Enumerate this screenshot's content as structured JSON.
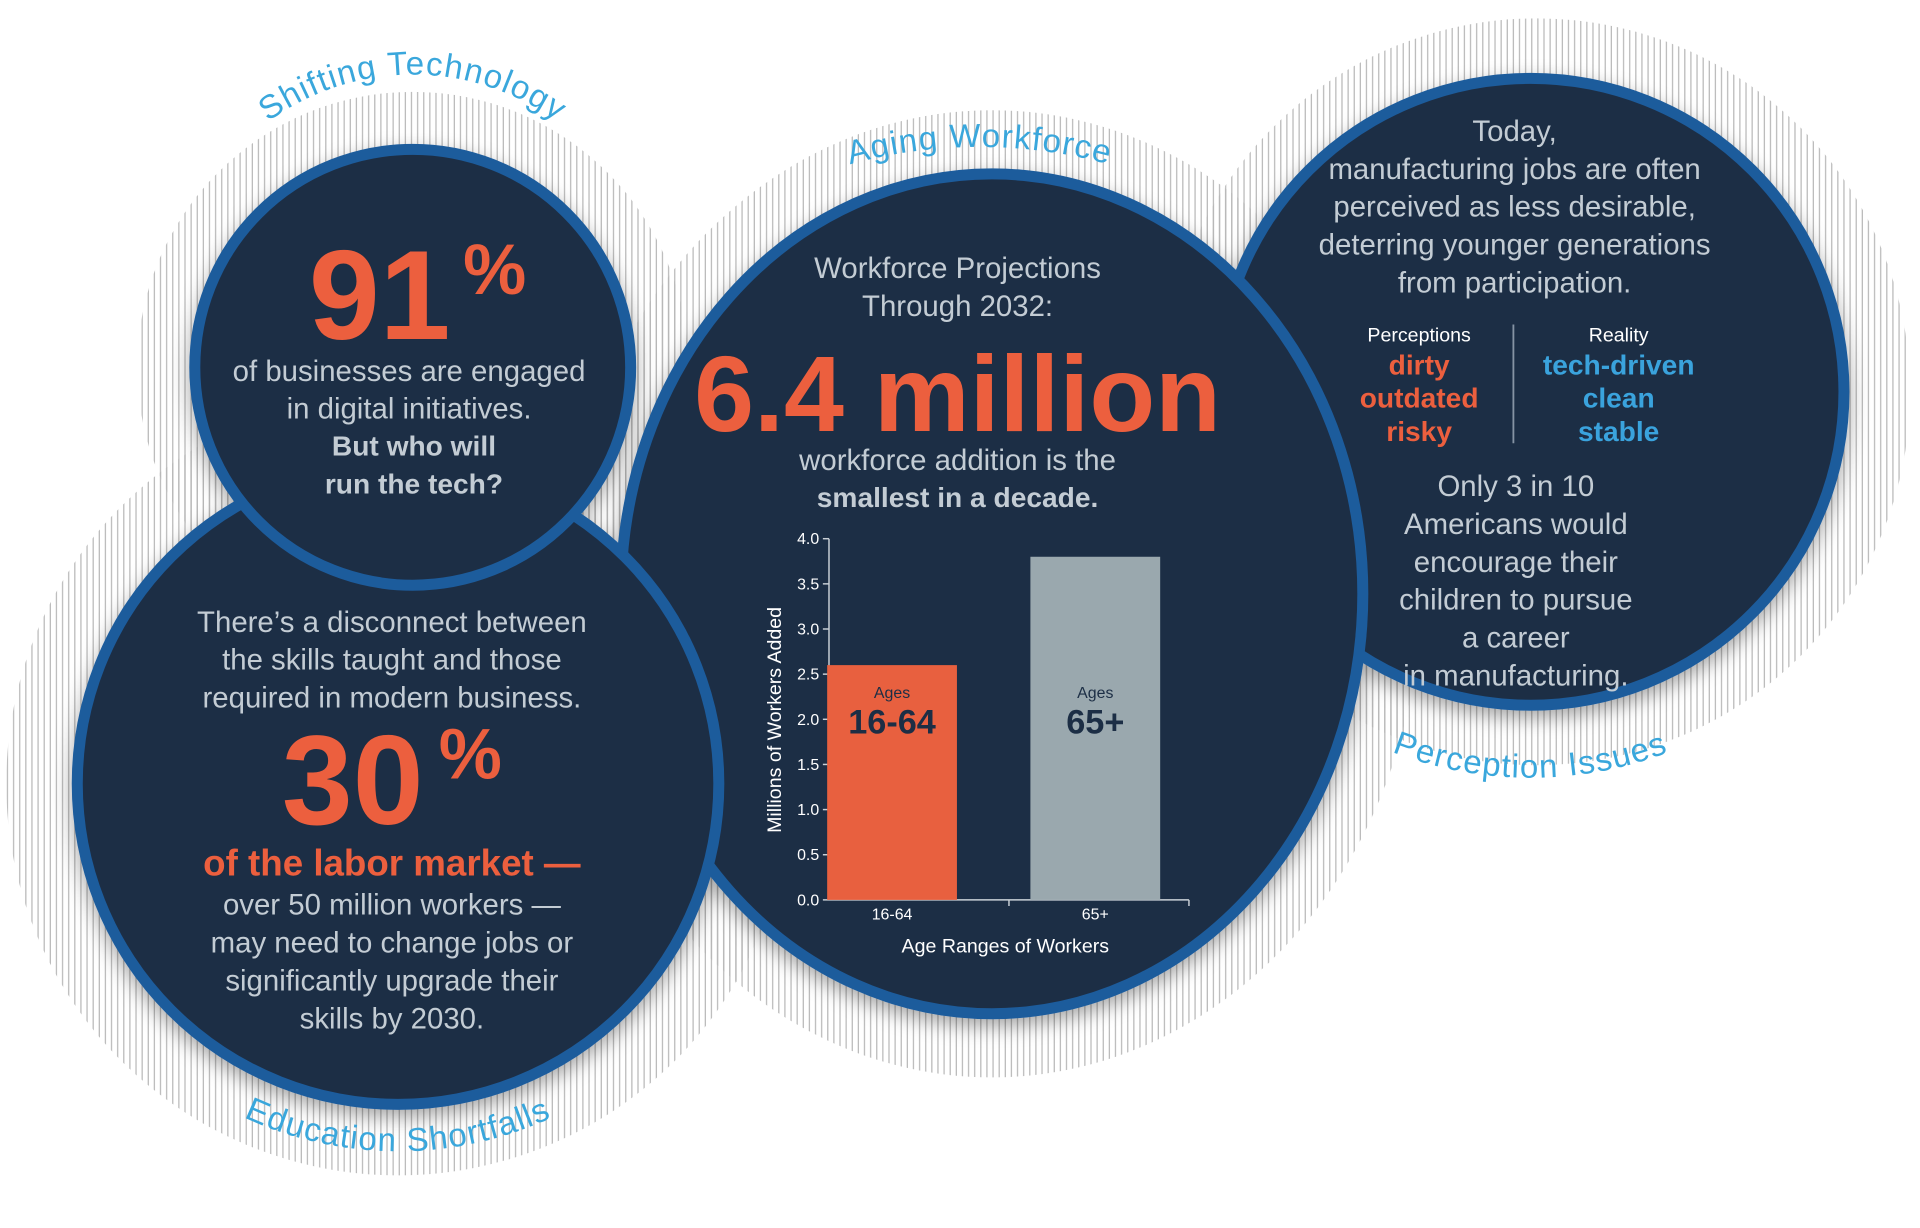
{
  "tech": {
    "heading": "Shifting Technology",
    "stat_number": "91",
    "stat_unit": "%",
    "lines": [
      "of businesses are engaged",
      "in digital initiatives."
    ],
    "emphasis": [
      "But who will",
      "run the tech?"
    ]
  },
  "education": {
    "heading": "Education Shortfalls",
    "intro": [
      "There’s a disconnect between",
      "the skills taught and those",
      "required in modern business."
    ],
    "stat_number": "30",
    "stat_unit": "%",
    "highlight": "of the labor market —",
    "lines": [
      "over 50 million workers —",
      "may need to change jobs or",
      "significantly upgrade their",
      "skills by 2030."
    ]
  },
  "aging": {
    "heading": "Aging Workforce",
    "intro": [
      "Workforce Projections",
      "Through 2032:"
    ],
    "stat": "6.4 million",
    "lines": [
      "workforce addition is the"
    ],
    "emphasis": [
      "smallest in a decade."
    ]
  },
  "perception": {
    "heading": "Perception Issues",
    "intro": [
      "Today,",
      "manufacturing jobs are often",
      "perceived as less desirable,",
      "deterring younger generations",
      "from participation."
    ],
    "perceptions": {
      "title": "Perceptions",
      "items": [
        "dirty",
        "outdated",
        "risky"
      ]
    },
    "reality": {
      "title": "Reality",
      "items": [
        "tech-driven",
        "clean",
        "stable"
      ]
    },
    "closing": [
      "Only 3 in 10",
      "Americans would",
      "encourage their",
      "children to pursue",
      "a career",
      "in manufacturing."
    ]
  },
  "chart_data": {
    "type": "bar",
    "x_label": "Age Ranges of Workers",
    "y_label": "Millions of Workers Added",
    "bar_label_prefix": "Ages",
    "categories": [
      "16-64",
      "65+"
    ],
    "values": [
      2.6,
      3.8
    ],
    "colors": [
      "#e8603f",
      "#9aa8ae"
    ],
    "ylim": [
      0,
      4
    ],
    "yticks": [
      {
        "value": 0,
        "label": "0.0"
      },
      0.5,
      {
        "value": 1,
        "label": "1.0"
      },
      1.5,
      {
        "value": 2,
        "label": "2.0"
      },
      2.5,
      {
        "value": 3,
        "label": "3.0"
      },
      3.5,
      {
        "value": 4,
        "label": "4.0"
      }
    ]
  }
}
